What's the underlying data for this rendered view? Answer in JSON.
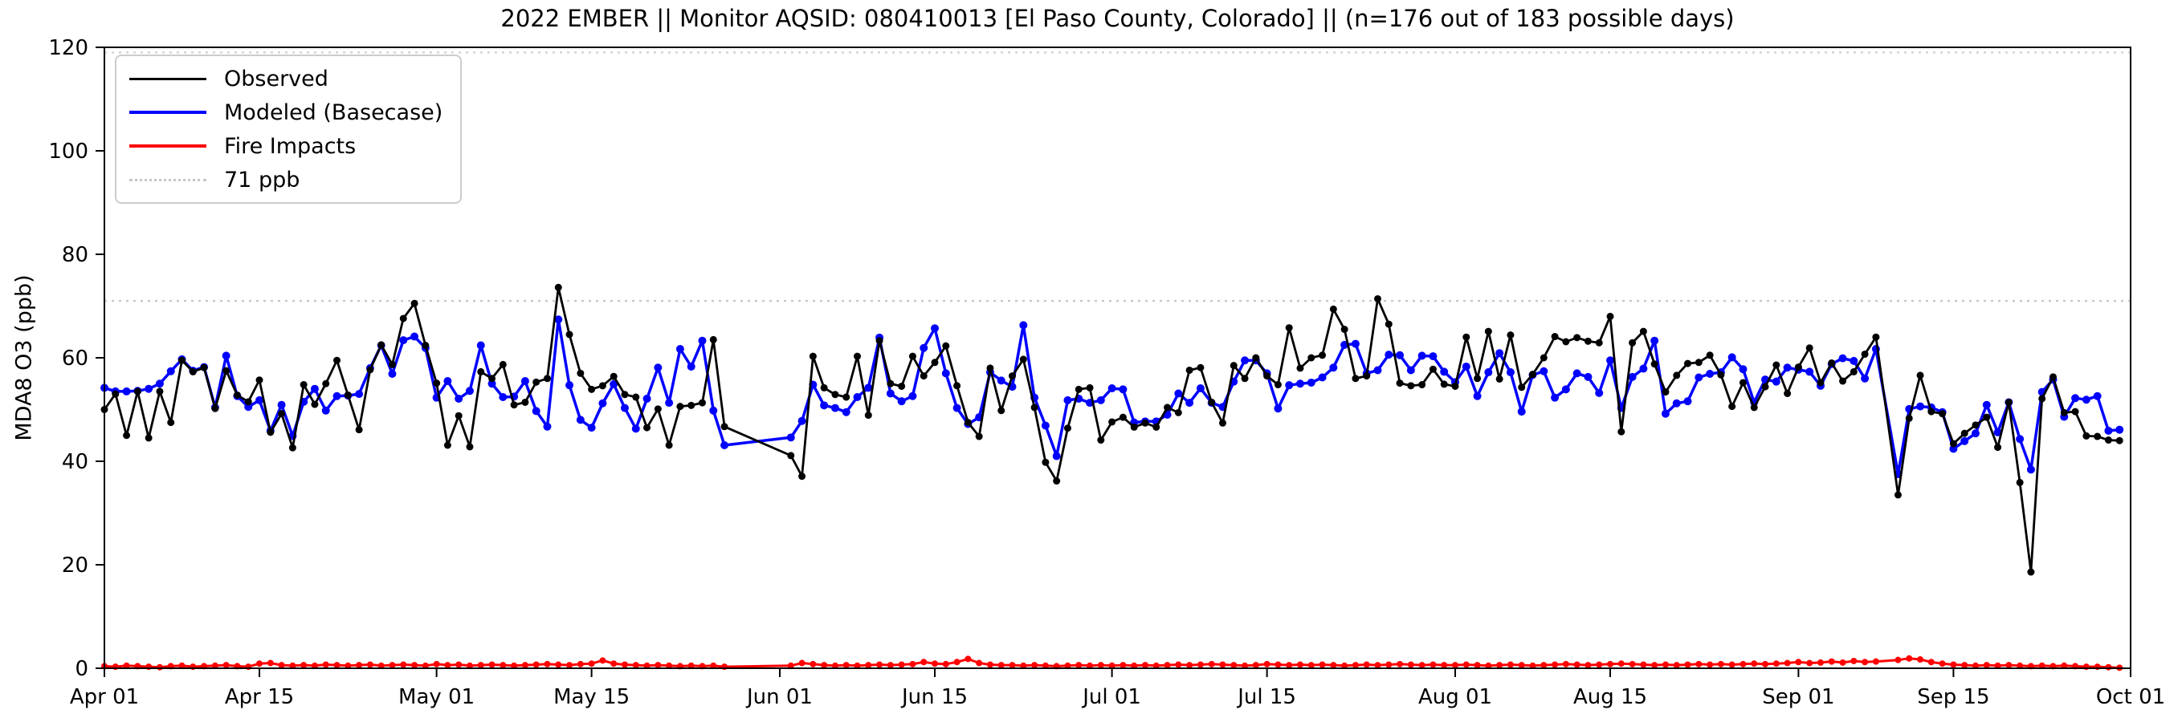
{
  "title": "2022 EMBER || Monitor AQSID: 080410013 [El Paso County, Colorado] || (n=176 out of 183 possible days)",
  "axes": {
    "ylabel": "MDA8 O3 (ppb)",
    "ylim": [
      0,
      120
    ],
    "yticks": [
      0,
      20,
      40,
      60,
      80,
      100,
      120
    ],
    "xticks": [
      {
        "day": 0,
        "label": "Apr 01"
      },
      {
        "day": 14,
        "label": "Apr 15"
      },
      {
        "day": 30,
        "label": "May 01"
      },
      {
        "day": 44,
        "label": "May 15"
      },
      {
        "day": 61,
        "label": "Jun 01"
      },
      {
        "day": 75,
        "label": "Jun 15"
      },
      {
        "day": 91,
        "label": "Jul 01"
      },
      {
        "day": 105,
        "label": "Jul 15"
      },
      {
        "day": 122,
        "label": "Aug 01"
      },
      {
        "day": 136,
        "label": "Aug 15"
      },
      {
        "day": 153,
        "label": "Sep 01"
      },
      {
        "day": 167,
        "label": "Sep 15"
      },
      {
        "day": 183,
        "label": "Oct 01"
      }
    ]
  },
  "legend": {
    "items": [
      {
        "label": "Observed",
        "color": "#000000",
        "style": "solid",
        "thickness": 3
      },
      {
        "label": "Modeled (Basecase)",
        "color": "#0000ff",
        "style": "solid",
        "thickness": 4
      },
      {
        "label": "Fire Impacts",
        "color": "#ff0000",
        "style": "solid",
        "thickness": 4
      },
      {
        "label": "71 ppb",
        "color": "#c7c7c7",
        "style": "dotted",
        "thickness": 3
      }
    ]
  },
  "chart_data": {
    "type": "line",
    "title": "2022 EMBER || Monitor AQSID: 080410013 [El Paso County, Colorado] || (n=176 out of 183 possible days)",
    "xlabel": "",
    "ylabel": "MDA8 O3 (ppb)",
    "x_start_date": "Apr 01 2022",
    "x_end_date": "Oct 01 2022",
    "x_total_days": 183,
    "grid": false,
    "legend_position": "upper left",
    "reference_lines": [
      {
        "value": 71,
        "label": "71 ppb",
        "color": "#c7c7c7"
      },
      {
        "value": 119,
        "label": "",
        "color": "#d2d2d2"
      }
    ],
    "series": [
      {
        "name": "Fire Impacts",
        "color": "#ff0000",
        "z": 1,
        "line_width": 3,
        "marker_radius": 4,
        "values": [
          0.4,
          0.3,
          0.5,
          0.4,
          0.3,
          0.2,
          0.4,
          0.5,
          0.3,
          0.4,
          0.5,
          0.6,
          0.4,
          0.3,
          0.9,
          1.0,
          0.6,
          0.5,
          0.6,
          0.5,
          0.7,
          0.6,
          0.5,
          0.6,
          0.7,
          0.5,
          0.6,
          0.7,
          0.6,
          0.5,
          0.8,
          0.6,
          0.7,
          0.5,
          0.6,
          0.7,
          0.6,
          0.5,
          0.6,
          0.7,
          0.8,
          0.7,
          0.6,
          0.8,
          0.9,
          1.5,
          0.9,
          0.7,
          0.6,
          0.5,
          0.6,
          0.5,
          0.4,
          0.5,
          0.4,
          0.5,
          0.3,
          null,
          null,
          null,
          null,
          null,
          0.5,
          1.0,
          0.8,
          0.6,
          0.5,
          0.6,
          0.5,
          0.6,
          0.7,
          0.6,
          0.7,
          0.8,
          1.2,
          0.9,
          0.8,
          1.2,
          1.8,
          1.0,
          0.7,
          0.6,
          0.6,
          0.5,
          0.6,
          0.5,
          0.4,
          0.5,
          0.6,
          0.5,
          0.6,
          0.5,
          0.6,
          0.5,
          0.6,
          0.5,
          0.6,
          0.7,
          0.6,
          0.7,
          0.8,
          0.7,
          0.6,
          0.5,
          0.6,
          0.8,
          0.7,
          0.6,
          0.7,
          0.6,
          0.7,
          0.6,
          0.5,
          0.6,
          0.7,
          0.6,
          0.7,
          0.8,
          0.7,
          0.6,
          0.7,
          0.6,
          0.6,
          0.7,
          0.6,
          0.5,
          0.6,
          0.7,
          0.6,
          0.5,
          0.6,
          0.7,
          0.8,
          0.7,
          0.6,
          0.7,
          0.8,
          0.9,
          0.8,
          0.7,
          0.6,
          0.7,
          0.6,
          0.7,
          0.8,
          0.7,
          0.8,
          0.7,
          0.8,
          0.9,
          0.8,
          0.9,
          1.0,
          1.2,
          1.0,
          1.1,
          1.3,
          1.1,
          1.4,
          1.2,
          1.3,
          null,
          1.6,
          1.9,
          1.7,
          1.2,
          0.9,
          0.7,
          0.6,
          0.5,
          0.6,
          0.5,
          0.6,
          0.5,
          0.4,
          0.5,
          0.4,
          0.5,
          0.4,
          0.3,
          0.3,
          0.2,
          0.1
        ]
      },
      {
        "name": "Modeled (Basecase)",
        "color": "#0000ff",
        "z": 2,
        "line_width": 3.5,
        "marker_radius": 5,
        "values": [
          54.2,
          53.5,
          53.5,
          53.6,
          54,
          55,
          57.4,
          59.7,
          57.5,
          58.2,
          50.4,
          60.4,
          52.6,
          50.5,
          51.8,
          45.9,
          50.9,
          44.9,
          51.5,
          54,
          49.8,
          52.6,
          52.7,
          53,
          58,
          62.4,
          56.9,
          63.4,
          64.1,
          61.9,
          52.3,
          55.5,
          52.1,
          53.6,
          62.4,
          55,
          52.4,
          52.5,
          55.5,
          49.7,
          46.7,
          67.4,
          54.7,
          48,
          46.5,
          51.2,
          54.9,
          50.3,
          46.3,
          52.1,
          58.1,
          51.3,
          61.7,
          58.3,
          63.3,
          49.8,
          43.1,
          null,
          null,
          null,
          null,
          null,
          44.6,
          47.8,
          54.8,
          50.8,
          50.3,
          49.5,
          52.4,
          54.2,
          63.9,
          53.1,
          51.6,
          52.6,
          61.9,
          65.7,
          57,
          50.3,
          47.2,
          48.5,
          57.2,
          55.6,
          54.4,
          66.3,
          52.3,
          46.9,
          41,
          51.8,
          52.1,
          51.3,
          51.8,
          54.1,
          53.9,
          47.5,
          47.7,
          47.7,
          49,
          53.1,
          51.3,
          54.1,
          51.3,
          50.5,
          55.4,
          59.5,
          59.5,
          57,
          50.2,
          54.7,
          55,
          55.2,
          56.2,
          58.1,
          62.5,
          62.7,
          57,
          57.6,
          60.6,
          60.5,
          57.6,
          60.4,
          60.3,
          57.3,
          55.3,
          58.3,
          52.6,
          57.2,
          60.9,
          57.2,
          49.6,
          56.7,
          57.4,
          52.3,
          53.9,
          57,
          56.3,
          53.2,
          59.5,
          50.3,
          56.3,
          57.9,
          63.3,
          49.2,
          51.2,
          51.6,
          56.2,
          56.9,
          57.2,
          60.1,
          57.8,
          51.4,
          55.8,
          55.4,
          58.1,
          57.7,
          57.3,
          54.6,
          58.8,
          59.9,
          59.4,
          56,
          61.7,
          null,
          37.5,
          50.1,
          50.6,
          50.4,
          49.5,
          42.4,
          43.9,
          45.4,
          50.9,
          45.6,
          51.4,
          44.3,
          38.4,
          53.4,
          55.8,
          48.6,
          52.2,
          51.9,
          52.6,
          45.9,
          46.1
        ]
      },
      {
        "name": "Observed",
        "color": "#000000",
        "z": 3,
        "line_width": 2.8,
        "marker_radius": 4.5,
        "values": [
          50,
          53,
          45,
          53.5,
          44.5,
          53.5,
          47.5,
          59.5,
          57.3,
          58.1,
          50.2,
          57.5,
          52.8,
          51.5,
          55.7,
          45.6,
          49.2,
          42.6,
          54.8,
          51,
          55,
          59.5,
          52.8,
          46.1,
          57.7,
          62.5,
          58.7,
          67.6,
          70.5,
          62.4,
          55.1,
          43.1,
          48.8,
          42.8,
          57.3,
          56,
          58.7,
          50.9,
          51.4,
          55.3,
          56,
          73.6,
          64.5,
          57,
          53.9,
          54.6,
          56.4,
          52.9,
          52.4,
          46.5,
          50.1,
          43.1,
          50.6,
          50.8,
          51.3,
          63.5,
          46.7,
          null,
          null,
          null,
          null,
          null,
          41.1,
          37.1,
          60.3,
          54.2,
          52.9,
          52.4,
          60.3,
          48.9,
          63.3,
          55,
          54.5,
          60.3,
          56.5,
          59.1,
          62.3,
          54.6,
          47.5,
          44.8,
          58,
          49.8,
          56.5,
          59.7,
          50.4,
          39.8,
          36.2,
          46.4,
          53.9,
          54.2,
          44.1,
          47.6,
          48.5,
          46.6,
          47.4,
          46.6,
          50.4,
          49.4,
          57.6,
          58.1,
          51.4,
          47.4,
          58.5,
          56,
          60,
          56.5,
          54.8,
          65.8,
          58,
          60,
          60.5,
          69.4,
          65.5,
          56,
          56.5,
          71.4,
          66.5,
          55.1,
          54.6,
          54.8,
          57.8,
          54.9,
          54.5,
          64,
          56,
          65.1,
          55.9,
          64.4,
          54.3,
          56.8,
          60,
          64.1,
          63.1,
          63.9,
          63.2,
          62.9,
          68,
          45.7,
          62.9,
          65.1,
          58.8,
          53.4,
          56.6,
          58.9,
          59.1,
          60.5,
          56.7,
          50.6,
          55.2,
          50.4,
          54.4,
          58.6,
          53.1,
          58.2,
          61.9,
          55.2,
          59,
          55.5,
          57.3,
          60.7,
          64,
          null,
          33.5,
          48.3,
          56.6,
          49.6,
          49.2,
          43.4,
          45.4,
          47,
          48.5,
          42.7,
          51.4,
          35.9,
          18.6,
          52.1,
          56.3,
          49.4,
          49.6,
          44.9,
          44.8,
          44.1,
          44
        ]
      }
    ]
  }
}
